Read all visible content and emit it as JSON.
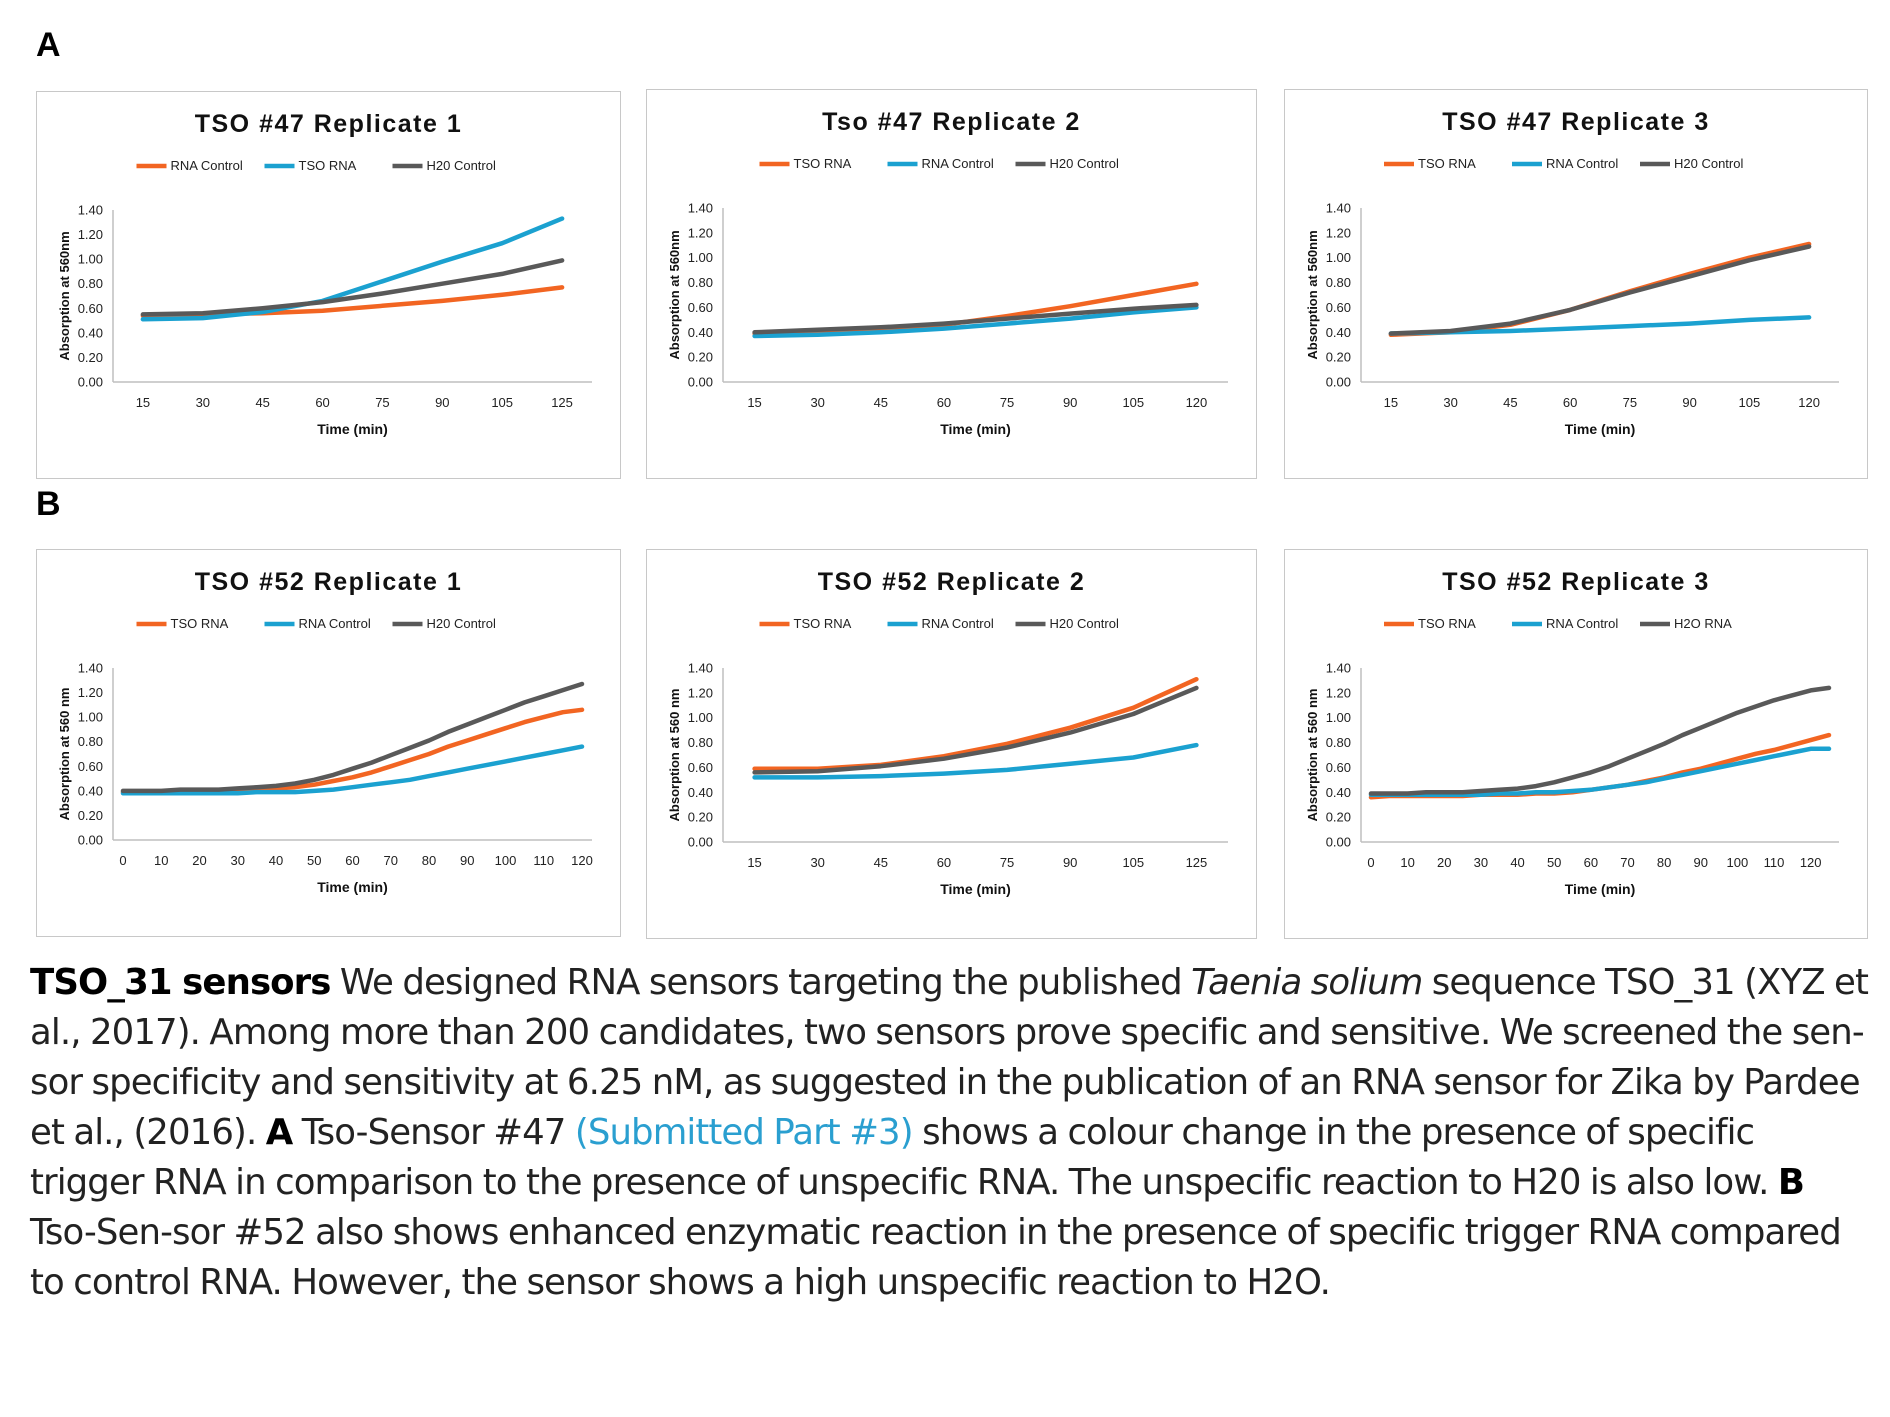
{
  "section_labels": {
    "a": "A",
    "b": "B"
  },
  "caption": {
    "lead_bold": "TSO_31 sensors",
    "t1": " We designed RNA sensors targeting the published ",
    "species": "Taenia solium",
    "t2": " sequence TSO_31 (XYZ et al., 2017). Among more than 200 candidates, two sensors prove specific and sensitive. We screened the sen-sor specificity and sensitivity at 6.25 nM, as suggested in the publication of an RNA sensor for Zika by Pardee et al., (2016). ",
    "a_bold": "A",
    "t3": " Tso-Sensor #47 ",
    "link": "(Submitted Part #3)",
    "t4": " shows a colour change in the presence of specific trigger RNA in comparison to the presence of unspecific RNA. The unspecific reaction to H20 is also low. ",
    "b_bold": "B",
    "t5": " Tso-Sen-sor #52 also shows enhanced enzymatic reaction in the presence of specific trigger RNA compared to control RNA. However, the sensor shows a high unspecific reaction to H2O."
  },
  "colors": {
    "orange": "#f26522",
    "blue": "#1ba1d0",
    "gray": "#595959"
  },
  "chart_data": [
    {
      "type": "line",
      "title": "TSO #47 Replicate 1",
      "xlabel": "Time (min)",
      "ylabel": "Absorption at 560nm",
      "x": [
        15,
        30,
        45,
        60,
        75,
        90,
        105,
        125
      ],
      "xticks": [
        "15",
        "30",
        "45",
        "60",
        "75",
        "90",
        "105",
        "125"
      ],
      "ylim": [
        0,
        1.4
      ],
      "yticks": [
        "0.00",
        "0.20",
        "0.40",
        "0.60",
        "0.80",
        "1.00",
        "1.20",
        "1.40"
      ],
      "legend": "top",
      "series": [
        {
          "name": "RNA Control",
          "color": "#f26522",
          "values": [
            0.54,
            0.55,
            0.56,
            0.58,
            0.62,
            0.66,
            0.71,
            0.77
          ]
        },
        {
          "name": "TSO RNA",
          "color": "#1ba1d0",
          "values": [
            0.51,
            0.52,
            0.57,
            0.66,
            0.82,
            0.98,
            1.13,
            1.33
          ]
        },
        {
          "name": "H20 Control",
          "color": "#595959",
          "values": [
            0.55,
            0.56,
            0.6,
            0.65,
            0.72,
            0.8,
            0.88,
            0.99
          ]
        }
      ]
    },
    {
      "type": "line",
      "title": "Tso #47 Replicate 2",
      "xlabel": "Time (min)",
      "ylabel": "Absorption at 560nm",
      "x": [
        15,
        30,
        45,
        60,
        75,
        90,
        105,
        120
      ],
      "xticks": [
        "15",
        "30",
        "45",
        "60",
        "75",
        "90",
        "105",
        "120"
      ],
      "ylim": [
        0,
        1.4
      ],
      "yticks": [
        "0.00",
        "0.20",
        "0.40",
        "0.60",
        "0.80",
        "1.00",
        "1.20",
        "1.40"
      ],
      "legend": "top",
      "series": [
        {
          "name": "TSO RNA",
          "color": "#f26522",
          "values": [
            0.39,
            0.41,
            0.43,
            0.46,
            0.53,
            0.61,
            0.7,
            0.79
          ]
        },
        {
          "name": "RNA Control",
          "color": "#1ba1d0",
          "values": [
            0.37,
            0.38,
            0.4,
            0.43,
            0.47,
            0.51,
            0.56,
            0.6
          ]
        },
        {
          "name": "H20 Control",
          "color": "#595959",
          "values": [
            0.4,
            0.42,
            0.44,
            0.47,
            0.51,
            0.55,
            0.59,
            0.62
          ]
        }
      ]
    },
    {
      "type": "line",
      "title": "TSO #47 Replicate 3",
      "xlabel": "Time (min)",
      "ylabel": "Absorption at 560nm",
      "x": [
        15,
        30,
        45,
        60,
        75,
        90,
        105,
        120
      ],
      "xticks": [
        "15",
        "30",
        "45",
        "60",
        "75",
        "90",
        "105",
        "120"
      ],
      "ylim": [
        0,
        1.4
      ],
      "yticks": [
        "0.00",
        "0.20",
        "0.40",
        "0.60",
        "0.80",
        "1.00",
        "1.20",
        "1.40"
      ],
      "legend": "top",
      "series": [
        {
          "name": "TSO RNA",
          "color": "#f26522",
          "values": [
            0.38,
            0.4,
            0.46,
            0.58,
            0.73,
            0.87,
            1.0,
            1.11
          ]
        },
        {
          "name": "RNA Control",
          "color": "#1ba1d0",
          "values": [
            0.39,
            0.4,
            0.41,
            0.43,
            0.45,
            0.47,
            0.5,
            0.52
          ]
        },
        {
          "name": "H20 Control",
          "color": "#595959",
          "values": [
            0.39,
            0.41,
            0.47,
            0.58,
            0.72,
            0.85,
            0.98,
            1.09
          ]
        }
      ]
    },
    {
      "type": "line",
      "title": "TSO #52 Replicate 1",
      "xlabel": "Time (min)",
      "ylabel": "Absorption at 560 nm",
      "x": [
        0,
        5,
        10,
        15,
        20,
        25,
        30,
        35,
        40,
        45,
        50,
        55,
        60,
        65,
        70,
        75,
        80,
        85,
        90,
        95,
        100,
        105,
        110,
        115,
        120
      ],
      "xticks": [
        "0",
        "10",
        "20",
        "30",
        "40",
        "50",
        "60",
        "70",
        "80",
        "90",
        "100",
        "110",
        "120"
      ],
      "xtick_values": [
        0,
        10,
        20,
        30,
        40,
        50,
        60,
        70,
        80,
        90,
        100,
        110,
        120
      ],
      "xlim": [
        0,
        120
      ],
      "ylim": [
        0,
        1.4
      ],
      "yticks": [
        "0.00",
        "0.20",
        "0.40",
        "0.60",
        "0.80",
        "1.00",
        "1.20",
        "1.40"
      ],
      "legend": "top",
      "series": [
        {
          "name": "TSO RNA",
          "color": "#f26522",
          "values": [
            0.39,
            0.39,
            0.39,
            0.4,
            0.4,
            0.4,
            0.41,
            0.41,
            0.42,
            0.43,
            0.45,
            0.48,
            0.51,
            0.55,
            0.6,
            0.65,
            0.7,
            0.76,
            0.81,
            0.86,
            0.91,
            0.96,
            1.0,
            1.04,
            1.06
          ]
        },
        {
          "name": "RNA Control",
          "color": "#1ba1d0",
          "values": [
            0.38,
            0.38,
            0.38,
            0.38,
            0.38,
            0.38,
            0.38,
            0.39,
            0.39,
            0.39,
            0.4,
            0.41,
            0.43,
            0.45,
            0.47,
            0.49,
            0.52,
            0.55,
            0.58,
            0.61,
            0.64,
            0.67,
            0.7,
            0.73,
            0.76
          ]
        },
        {
          "name": "H20 Control",
          "color": "#595959",
          "values": [
            0.4,
            0.4,
            0.4,
            0.41,
            0.41,
            0.41,
            0.42,
            0.43,
            0.44,
            0.46,
            0.49,
            0.53,
            0.58,
            0.63,
            0.69,
            0.75,
            0.81,
            0.88,
            0.94,
            1.0,
            1.06,
            1.12,
            1.17,
            1.22,
            1.27
          ]
        }
      ]
    },
    {
      "type": "line",
      "title": "TSO #52 Replicate 2",
      "xlabel": "Time (min)",
      "ylabel": "Absorption at 560 nm",
      "x": [
        15,
        30,
        45,
        60,
        75,
        90,
        105,
        125
      ],
      "xticks": [
        "15",
        "30",
        "45",
        "60",
        "75",
        "90",
        "105",
        "125"
      ],
      "ylim": [
        0,
        1.4
      ],
      "yticks": [
        "0.00",
        "0.20",
        "0.40",
        "0.60",
        "0.80",
        "1.00",
        "1.20",
        "1.40"
      ],
      "legend": "top",
      "series": [
        {
          "name": "TSO RNA",
          "color": "#f26522",
          "values": [
            0.59,
            0.59,
            0.62,
            0.69,
            0.79,
            0.92,
            1.08,
            1.31
          ]
        },
        {
          "name": "RNA Control",
          "color": "#1ba1d0",
          "values": [
            0.52,
            0.52,
            0.53,
            0.55,
            0.58,
            0.63,
            0.68,
            0.78
          ]
        },
        {
          "name": "H20 Control",
          "color": "#595959",
          "values": [
            0.56,
            0.57,
            0.61,
            0.67,
            0.76,
            0.88,
            1.03,
            1.24
          ]
        }
      ]
    },
    {
      "type": "line",
      "title": "TSO #52 Replicate 3",
      "xlabel": "Time (min)",
      "ylabel": "Absorption at 560 nm",
      "x": [
        0,
        5,
        10,
        15,
        20,
        25,
        30,
        35,
        40,
        45,
        50,
        55,
        60,
        65,
        70,
        75,
        80,
        85,
        90,
        95,
        100,
        105,
        110,
        115,
        120,
        125
      ],
      "xticks": [
        "0",
        "10",
        "20",
        "30",
        "40",
        "50",
        "60",
        "70",
        "80",
        "90",
        "100",
        "110",
        "120"
      ],
      "xtick_values": [
        0,
        10,
        20,
        30,
        40,
        50,
        60,
        70,
        80,
        90,
        100,
        110,
        120
      ],
      "xlim": [
        0,
        125
      ],
      "ylim": [
        0,
        1.4
      ],
      "yticks": [
        "0.00",
        "0.20",
        "0.40",
        "0.60",
        "0.80",
        "1.00",
        "1.20",
        "1.40"
      ],
      "legend": "top",
      "series": [
        {
          "name": "TSO RNA",
          "color": "#f26522",
          "values": [
            0.36,
            0.37,
            0.37,
            0.37,
            0.37,
            0.37,
            0.38,
            0.38,
            0.38,
            0.39,
            0.39,
            0.4,
            0.42,
            0.44,
            0.46,
            0.49,
            0.52,
            0.56,
            0.59,
            0.63,
            0.67,
            0.71,
            0.74,
            0.78,
            0.82,
            0.86
          ]
        },
        {
          "name": "RNA Control",
          "color": "#1ba1d0",
          "values": [
            0.38,
            0.38,
            0.38,
            0.38,
            0.38,
            0.38,
            0.38,
            0.39,
            0.39,
            0.4,
            0.4,
            0.41,
            0.42,
            0.44,
            0.46,
            0.48,
            0.51,
            0.54,
            0.57,
            0.6,
            0.63,
            0.66,
            0.69,
            0.72,
            0.75,
            0.75
          ]
        },
        {
          "name": "H2O RNA",
          "color": "#595959",
          "values": [
            0.39,
            0.39,
            0.39,
            0.4,
            0.4,
            0.4,
            0.41,
            0.42,
            0.43,
            0.45,
            0.48,
            0.52,
            0.56,
            0.61,
            0.67,
            0.73,
            0.79,
            0.86,
            0.92,
            0.98,
            1.04,
            1.09,
            1.14,
            1.18,
            1.22,
            1.24
          ]
        }
      ]
    }
  ]
}
